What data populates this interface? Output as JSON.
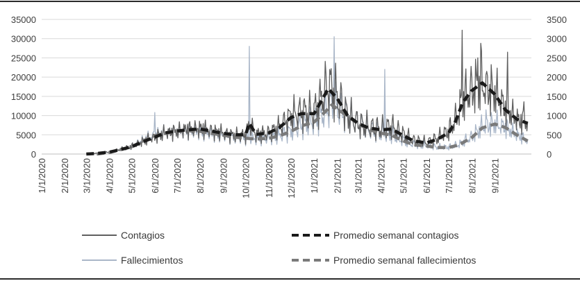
{
  "chart_data": {
    "type": "line",
    "title": "",
    "xlabel": "",
    "ylabel": "",
    "y_left": {
      "min": 0,
      "max": 35000,
      "ticks": [
        "0",
        "5000",
        "10000",
        "15000",
        "20000",
        "25000",
        "30000",
        "35000"
      ]
    },
    "y_right": {
      "min": 0,
      "max": 3500,
      "ticks": [
        "0",
        "500",
        "1000",
        "1500",
        "2000",
        "2500",
        "3000",
        "3500"
      ]
    },
    "x_range": [
      "2020-01-01",
      "2021-10-20"
    ],
    "x_ticks": [
      "1/1/2020",
      "2/1/2020",
      "3/1/2020",
      "4/1/2020",
      "5/1/2020",
      "6/1/2020",
      "7/1/2020",
      "8/1/2020",
      "9/1/2020",
      "10/1/2020",
      "11/1/2020",
      "12/1/2020",
      "1/1/2021",
      "2/1/2021",
      "3/1/2021",
      "4/1/2021",
      "5/1/2021",
      "6/1/2021",
      "7/1/2021",
      "8/1/2021",
      "9/1/2021"
    ],
    "grid": "horizontal",
    "legend_position": "bottom",
    "series": [
      {
        "name": "Contagios",
        "axis": "left",
        "style": "solid-thin",
        "color": "#5f5f5f",
        "points": [
          [
            "2020-03-01",
            0
          ],
          [
            "2020-03-15",
            200
          ],
          [
            "2020-04-01",
            500
          ],
          [
            "2020-04-15",
            1200
          ],
          [
            "2020-05-01",
            2000
          ],
          [
            "2020-05-15",
            3200
          ],
          [
            "2020-06-01",
            4500
          ],
          [
            "2020-06-15",
            5500
          ],
          [
            "2020-07-01",
            6000
          ],
          [
            "2020-07-15",
            6500
          ],
          [
            "2020-08-01",
            6800
          ],
          [
            "2020-08-15",
            6200
          ],
          [
            "2020-09-01",
            5500
          ],
          [
            "2020-09-15",
            5000
          ],
          [
            "2020-10-01",
            5000
          ],
          [
            "2020-10-06",
            8000
          ],
          [
            "2020-10-15",
            5200
          ],
          [
            "2020-11-01",
            5500
          ],
          [
            "2020-11-15",
            7000
          ],
          [
            "2020-12-01",
            10000
          ],
          [
            "2020-12-15",
            11000
          ],
          [
            "2021-01-01",
            11000
          ],
          [
            "2021-01-10",
            14000
          ],
          [
            "2021-01-20",
            18000
          ],
          [
            "2021-02-01",
            15000
          ],
          [
            "2021-02-15",
            10000
          ],
          [
            "2021-03-01",
            8000
          ],
          [
            "2021-03-15",
            7000
          ],
          [
            "2021-04-01",
            6500
          ],
          [
            "2021-04-15",
            7000
          ],
          [
            "2021-05-01",
            5000
          ],
          [
            "2021-05-15",
            3500
          ],
          [
            "2021-06-01",
            3000
          ],
          [
            "2021-06-15",
            4000
          ],
          [
            "2021-07-01",
            6000
          ],
          [
            "2021-07-10",
            9000
          ],
          [
            "2021-07-20",
            14000
          ],
          [
            "2021-08-01",
            17000
          ],
          [
            "2021-08-15",
            18000
          ],
          [
            "2021-09-01",
            16000
          ],
          [
            "2021-09-15",
            12000
          ],
          [
            "2021-10-01",
            9000
          ],
          [
            "2021-10-15",
            8000
          ]
        ],
        "spikes": [
          [
            "2021-01-22",
            22000
          ],
          [
            "2021-07-19",
            32200
          ],
          [
            "2021-08-09",
            25000
          ],
          [
            "2021-08-13",
            28800
          ],
          [
            "2021-09-18",
            26500
          ],
          [
            "2021-10-10",
            13600
          ]
        ]
      },
      {
        "name": "Promedio semanal contagios",
        "axis": "left",
        "style": "dashed-thick",
        "color": "#1a1a1a",
        "points": [
          [
            "2020-03-01",
            0
          ],
          [
            "2020-03-15",
            150
          ],
          [
            "2020-04-01",
            500
          ],
          [
            "2020-04-15",
            1100
          ],
          [
            "2020-05-01",
            1900
          ],
          [
            "2020-05-15",
            3100
          ],
          [
            "2020-06-01",
            4400
          ],
          [
            "2020-06-15",
            5500
          ],
          [
            "2020-07-01",
            6000
          ],
          [
            "2020-07-15",
            6300
          ],
          [
            "2020-08-01",
            6500
          ],
          [
            "2020-08-15",
            6000
          ],
          [
            "2020-09-01",
            5400
          ],
          [
            "2020-09-15",
            5000
          ],
          [
            "2020-10-01",
            5000
          ],
          [
            "2020-10-06",
            8000
          ],
          [
            "2020-10-15",
            5100
          ],
          [
            "2020-11-01",
            5500
          ],
          [
            "2020-11-15",
            6800
          ],
          [
            "2020-12-01",
            9500
          ],
          [
            "2020-12-15",
            10500
          ],
          [
            "2021-01-01",
            10500
          ],
          [
            "2021-01-10",
            13500
          ],
          [
            "2021-01-20",
            17000
          ],
          [
            "2021-02-01",
            14500
          ],
          [
            "2021-02-15",
            10000
          ],
          [
            "2021-03-01",
            8000
          ],
          [
            "2021-03-15",
            6800
          ],
          [
            "2021-04-01",
            6300
          ],
          [
            "2021-04-15",
            6500
          ],
          [
            "2021-05-01",
            4800
          ],
          [
            "2021-05-15",
            3400
          ],
          [
            "2021-06-01",
            2900
          ],
          [
            "2021-06-15",
            3800
          ],
          [
            "2021-07-01",
            5500
          ],
          [
            "2021-07-10",
            8500
          ],
          [
            "2021-07-20",
            13500
          ],
          [
            "2021-08-01",
            16500
          ],
          [
            "2021-08-15",
            18500
          ],
          [
            "2021-09-01",
            15500
          ],
          [
            "2021-09-15",
            11500
          ],
          [
            "2021-10-01",
            9000
          ],
          [
            "2021-10-15",
            8000
          ]
        ]
      },
      {
        "name": "Fallecimientos",
        "axis": "right",
        "style": "solid-thin",
        "color": "#a9b6c8",
        "points": [
          [
            "2020-03-15",
            0
          ],
          [
            "2020-04-01",
            50
          ],
          [
            "2020-04-15",
            120
          ],
          [
            "2020-05-01",
            200
          ],
          [
            "2020-05-15",
            350
          ],
          [
            "2020-06-01",
            500
          ],
          [
            "2020-06-15",
            550
          ],
          [
            "2020-07-01",
            600
          ],
          [
            "2020-07-15",
            620
          ],
          [
            "2020-08-01",
            600
          ],
          [
            "2020-08-15",
            550
          ],
          [
            "2020-09-01",
            500
          ],
          [
            "2020-09-15",
            450
          ],
          [
            "2020-10-01",
            420
          ],
          [
            "2020-10-15",
            400
          ],
          [
            "2020-11-01",
            420
          ],
          [
            "2020-11-15",
            480
          ],
          [
            "2020-12-01",
            600
          ],
          [
            "2020-12-15",
            750
          ],
          [
            "2021-01-01",
            850
          ],
          [
            "2021-01-15",
            1100
          ],
          [
            "2021-01-25",
            1300
          ],
          [
            "2021-02-01",
            1200
          ],
          [
            "2021-02-15",
            1000
          ],
          [
            "2021-03-01",
            800
          ],
          [
            "2021-03-15",
            650
          ],
          [
            "2021-04-01",
            550
          ],
          [
            "2021-04-15",
            500
          ],
          [
            "2021-05-01",
            350
          ],
          [
            "2021-05-15",
            250
          ],
          [
            "2021-06-01",
            220
          ],
          [
            "2021-06-15",
            180
          ],
          [
            "2021-07-01",
            180
          ],
          [
            "2021-07-15",
            250
          ],
          [
            "2021-08-01",
            450
          ],
          [
            "2021-08-15",
            700
          ],
          [
            "2021-09-01",
            800
          ],
          [
            "2021-09-15",
            700
          ],
          [
            "2021-10-01",
            500
          ],
          [
            "2021-10-15",
            350
          ]
        ],
        "spikes": [
          [
            "2020-06-01",
            1080
          ],
          [
            "2020-10-06",
            2800
          ],
          [
            "2021-01-28",
            3050
          ],
          [
            "2021-04-06",
            2200
          ],
          [
            "2021-08-20",
            1150
          ]
        ]
      },
      {
        "name": "Promedio semanal fallecimientos",
        "axis": "right",
        "style": "dashed-thick",
        "color": "#7a7a7a",
        "points": [
          [
            "2020-03-15",
            0
          ],
          [
            "2020-04-01",
            40
          ],
          [
            "2020-04-15",
            110
          ],
          [
            "2020-05-01",
            190
          ],
          [
            "2020-05-15",
            330
          ],
          [
            "2020-06-01",
            480
          ],
          [
            "2020-06-15",
            540
          ],
          [
            "2020-07-01",
            590
          ],
          [
            "2020-07-15",
            610
          ],
          [
            "2020-08-01",
            590
          ],
          [
            "2020-08-15",
            540
          ],
          [
            "2020-09-01",
            490
          ],
          [
            "2020-09-15",
            440
          ],
          [
            "2020-10-01",
            410
          ],
          [
            "2020-10-15",
            390
          ],
          [
            "2020-11-01",
            410
          ],
          [
            "2020-11-15",
            470
          ],
          [
            "2020-12-01",
            590
          ],
          [
            "2020-12-15",
            730
          ],
          [
            "2021-01-01",
            830
          ],
          [
            "2021-01-15",
            1080
          ],
          [
            "2021-01-25",
            1280
          ],
          [
            "2021-02-01",
            1180
          ],
          [
            "2021-02-15",
            980
          ],
          [
            "2021-03-01",
            790
          ],
          [
            "2021-03-15",
            640
          ],
          [
            "2021-04-01",
            540
          ],
          [
            "2021-04-15",
            490
          ],
          [
            "2021-05-01",
            340
          ],
          [
            "2021-05-15",
            240
          ],
          [
            "2021-06-01",
            210
          ],
          [
            "2021-06-15",
            170
          ],
          [
            "2021-07-01",
            170
          ],
          [
            "2021-07-15",
            240
          ],
          [
            "2021-08-01",
            430
          ],
          [
            "2021-08-15",
            680
          ],
          [
            "2021-09-01",
            780
          ],
          [
            "2021-09-15",
            690
          ],
          [
            "2021-10-01",
            490
          ],
          [
            "2021-10-15",
            340
          ]
        ]
      }
    ]
  }
}
